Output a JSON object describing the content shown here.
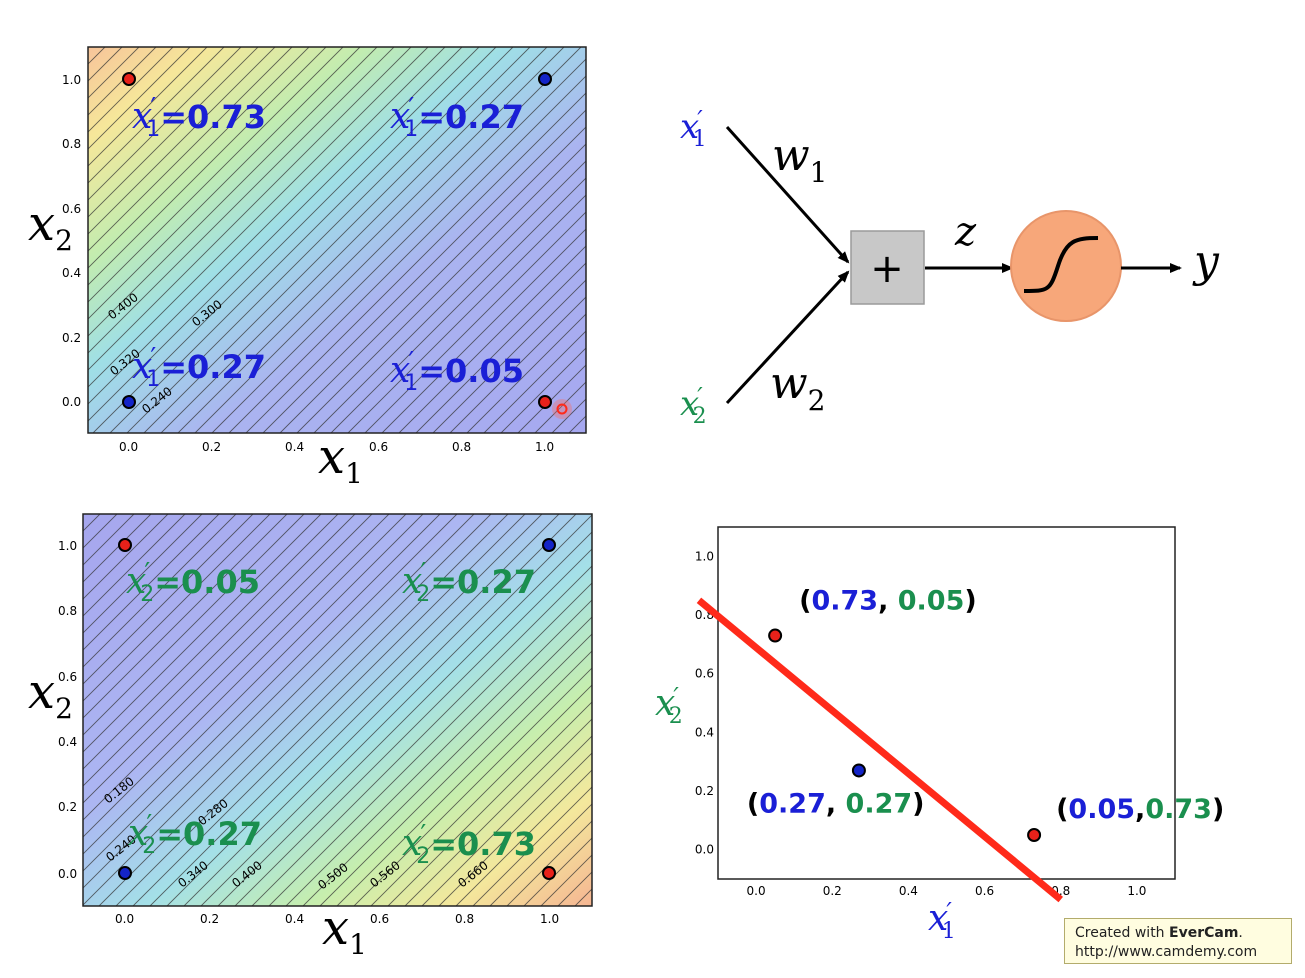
{
  "colors": {
    "blue_text": "#1a1fd6",
    "green_text": "#1a8f4e",
    "red_point": "#e8211a",
    "blue_point": "#1424c8",
    "red_line": "#ff2a1a",
    "sum_box": "#c8c8c8",
    "sigmoid_fill": "#f7a77a",
    "sigmoid_stroke": "#e8956a"
  },
  "plot_top_left": {
    "annotations": [
      {
        "var": "x",
        "sub": "1",
        "prime": "′",
        "value": "=0.73"
      },
      {
        "var": "x",
        "sub": "1",
        "prime": "′",
        "value": "=0.27"
      },
      {
        "var": "x",
        "sub": "1",
        "prime": "′",
        "value": "=0.27"
      },
      {
        "var": "x",
        "sub": "1",
        "prime": "′",
        "value": "=0.05"
      }
    ],
    "contour_labels": [
      "0.400",
      "0.300",
      "0.320",
      "0.240"
    ],
    "xlabel": {
      "var": "x",
      "sub": "1"
    },
    "ylabel": {
      "var": "x",
      "sub": "2"
    },
    "xticks": [
      "0.0",
      "0.2",
      "0.4",
      "0.6",
      "0.8",
      "1.0"
    ],
    "yticks": [
      "1.0",
      "0.8",
      "0.6",
      "0.4",
      "0.2",
      "0.0"
    ]
  },
  "plot_bottom_left": {
    "annotations": [
      {
        "var": "x",
        "sub": "2",
        "prime": "′",
        "value": "=0.05"
      },
      {
        "var": "x",
        "sub": "2",
        "prime": "′",
        "value": "=0.27"
      },
      {
        "var": "x",
        "sub": "2",
        "prime": "′",
        "value": "=0.27"
      },
      {
        "var": "x",
        "sub": "2",
        "prime": "′",
        "value": "=0.73"
      }
    ],
    "contour_labels": [
      "0.180",
      "0.280",
      "0.240",
      "0.340",
      "0.400",
      "0.500",
      "0.560",
      "0.660"
    ],
    "xlabel": {
      "var": "x",
      "sub": "1"
    },
    "ylabel": {
      "var": "x",
      "sub": "2"
    },
    "xticks": [
      "0.0",
      "0.2",
      "0.4",
      "0.6",
      "0.8",
      "1.0"
    ],
    "yticks": [
      "1.0",
      "0.8",
      "0.6",
      "0.4",
      "0.2",
      "0.0"
    ]
  },
  "neuron_diagram": {
    "input1": {
      "var": "x",
      "sub": "1",
      "prime": "′"
    },
    "input2": {
      "var": "x",
      "sub": "2",
      "prime": "′"
    },
    "weight1": {
      "var": "w",
      "sub": "1"
    },
    "weight2": {
      "var": "w",
      "sub": "2"
    },
    "sum_symbol": "+",
    "z_label": "z",
    "output_label": "y"
  },
  "chart_data": {
    "type": "scatter",
    "xlabel": "x′1",
    "ylabel": "x′2",
    "xlim": [
      -0.1,
      1.1
    ],
    "ylim": [
      -0.1,
      1.1
    ],
    "xticks": [
      "0.0",
      "0.2",
      "0.4",
      "0.6",
      "0.8",
      "1.0"
    ],
    "yticks": [
      "1.0",
      "0.8",
      "0.6",
      "0.4",
      "0.2",
      "0.0"
    ],
    "points": [
      {
        "x": 0.05,
        "y": 0.73,
        "class": "red",
        "label_a": "0.73",
        "label_b": "0.05",
        "sep": ", "
      },
      {
        "x": 0.27,
        "y": 0.27,
        "class": "blue",
        "label_a": "0.27",
        "label_b": "0.27",
        "sep": ", "
      },
      {
        "x": 0.73,
        "y": 0.05,
        "class": "red",
        "label_a": "0.05",
        "label_b": "0.73",
        "sep": ","
      }
    ],
    "decision_line": {
      "x": [
        -0.15,
        0.8
      ],
      "y": [
        0.85,
        -0.17
      ]
    }
  },
  "watermark": {
    "prefix": "Created with ",
    "brand": "EverCam",
    "suffix": ".",
    "url": "http://www.camdemy.com"
  }
}
